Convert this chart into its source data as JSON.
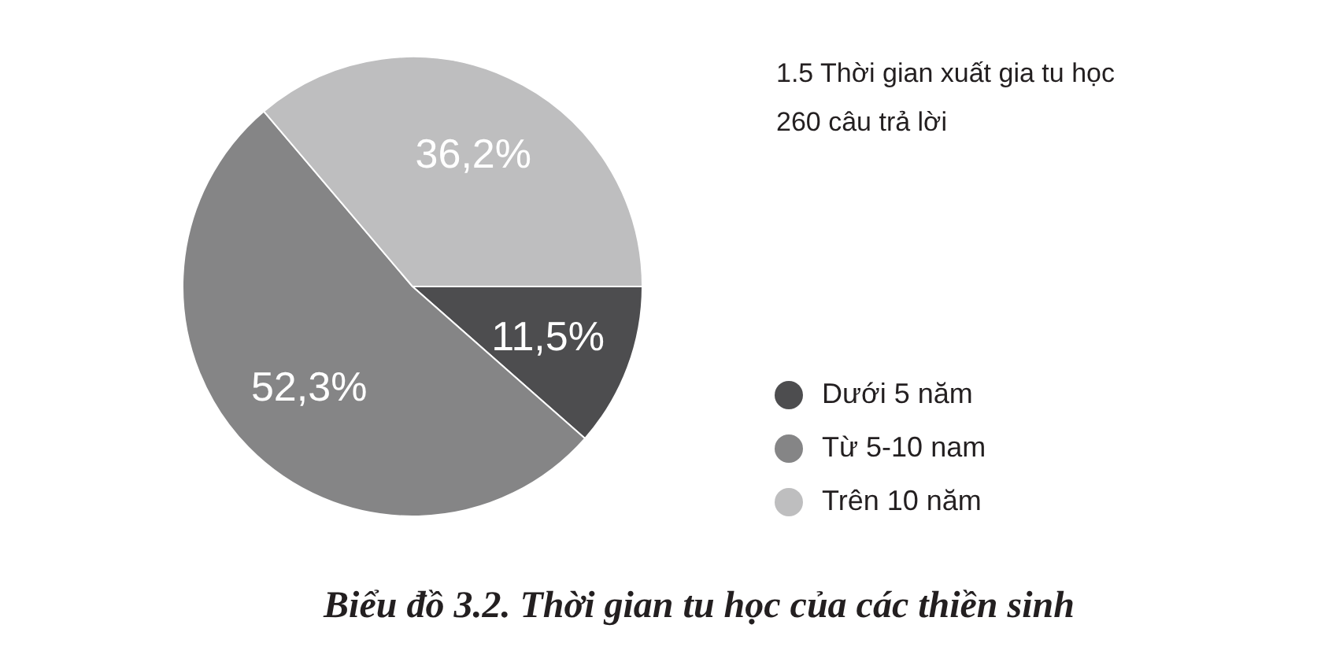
{
  "chart_data": {
    "type": "pie",
    "title": "1.5 Thời gian xuất gia tu học",
    "subtitle": "260 câu trả lời",
    "annotations": [
      "Biểu đồ 3.2. Thời gian tu học của các thiền sinh"
    ],
    "categories": [
      "Dưới 5 năm",
      "Từ 5-10 nam",
      "Trên 10 năm"
    ],
    "values": [
      11.5,
      52.3,
      36.2
    ],
    "colors": [
      "#4d4d4f",
      "#858586",
      "#bebebf"
    ],
    "value_labels": [
      "11,5%",
      "52,3%",
      "36,2%"
    ],
    "legend": "right"
  }
}
